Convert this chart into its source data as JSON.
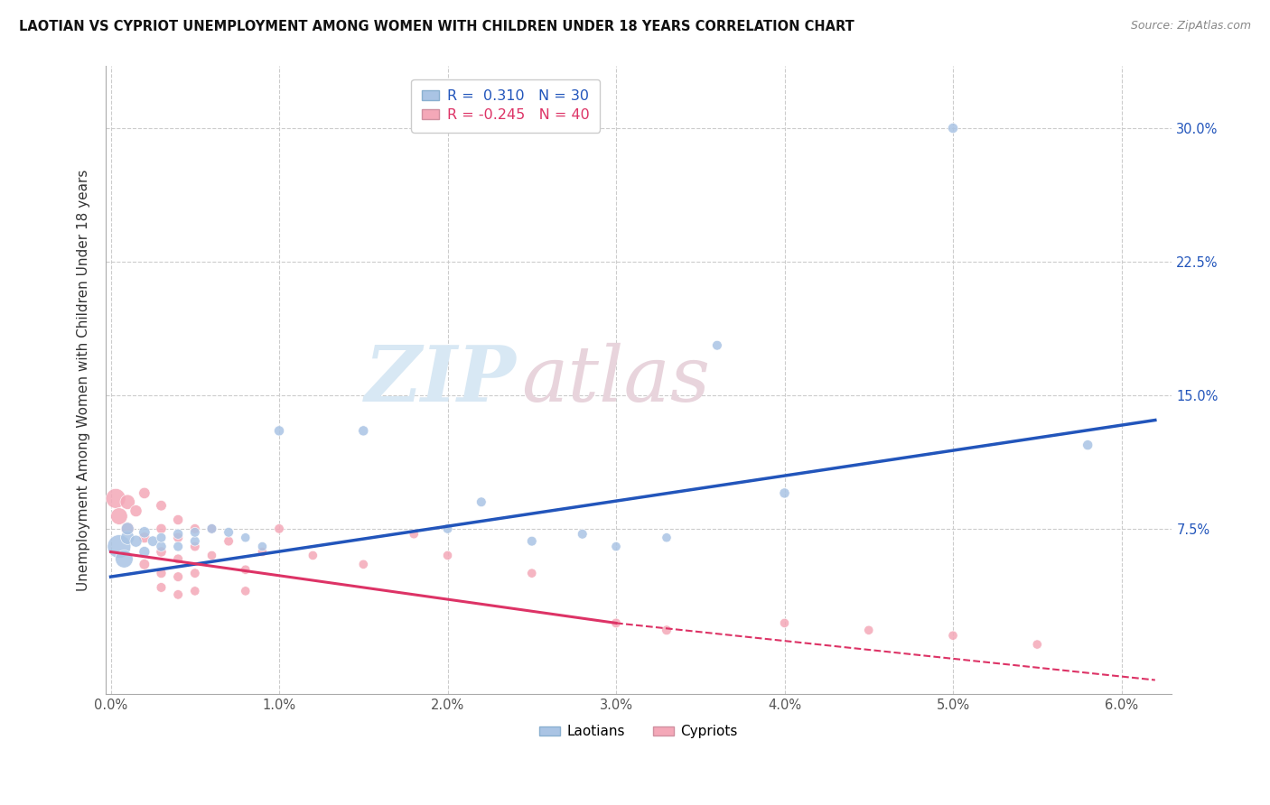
{
  "title": "LAOTIAN VS CYPRIOT UNEMPLOYMENT AMONG WOMEN WITH CHILDREN UNDER 18 YEARS CORRELATION CHART",
  "source": "Source: ZipAtlas.com",
  "ylabel": "Unemployment Among Women with Children Under 18 years",
  "xlim": [
    -0.0003,
    0.063
  ],
  "ylim": [
    -0.018,
    0.335
  ],
  "xticks": [
    0.0,
    0.01,
    0.02,
    0.03,
    0.04,
    0.05,
    0.06
  ],
  "xticklabels": [
    "0.0%",
    "1.0%",
    "2.0%",
    "3.0%",
    "4.0%",
    "5.0%",
    "6.0%"
  ],
  "yticks": [
    0.0,
    0.075,
    0.15,
    0.225,
    0.3
  ],
  "yticklabels": [
    "",
    "7.5%",
    "15.0%",
    "22.5%",
    "30.0%"
  ],
  "grid_color": "#cccccc",
  "background_color": "#ffffff",
  "watermark_zip": "ZIP",
  "watermark_atlas": "atlas",
  "laotian_color": "#aac4e4",
  "cypriot_color": "#f4a8b8",
  "laotian_line_color": "#2255bb",
  "cypriot_line_color": "#dd3366",
  "cypriot_line_color_dash": "#dd3366",
  "legend_r_laotian": "0.310",
  "legend_n_laotian": "30",
  "legend_r_cypriot": "-0.245",
  "legend_n_cypriot": "40",
  "laotian_trend": [
    0.0,
    0.062,
    0.048,
    0.136
  ],
  "cypriot_trend_solid": [
    0.0,
    0.03,
    0.062,
    0.022
  ],
  "cypriot_trend_dash": [
    0.03,
    0.022,
    0.062,
    -0.01
  ],
  "laotian_points": [
    [
      0.0005,
      0.065,
      350
    ],
    [
      0.0008,
      0.058,
      200
    ],
    [
      0.001,
      0.07,
      120
    ],
    [
      0.001,
      0.075,
      100
    ],
    [
      0.0015,
      0.068,
      90
    ],
    [
      0.002,
      0.073,
      80
    ],
    [
      0.002,
      0.062,
      75
    ],
    [
      0.0025,
      0.068,
      70
    ],
    [
      0.003,
      0.065,
      65
    ],
    [
      0.003,
      0.07,
      60
    ],
    [
      0.004,
      0.072,
      65
    ],
    [
      0.004,
      0.065,
      60
    ],
    [
      0.005,
      0.068,
      60
    ],
    [
      0.005,
      0.073,
      60
    ],
    [
      0.006,
      0.075,
      60
    ],
    [
      0.007,
      0.073,
      60
    ],
    [
      0.008,
      0.07,
      55
    ],
    [
      0.009,
      0.065,
      55
    ],
    [
      0.01,
      0.13,
      65
    ],
    [
      0.015,
      0.13,
      65
    ],
    [
      0.02,
      0.075,
      60
    ],
    [
      0.022,
      0.09,
      60
    ],
    [
      0.025,
      0.068,
      60
    ],
    [
      0.028,
      0.072,
      60
    ],
    [
      0.03,
      0.065,
      55
    ],
    [
      0.033,
      0.07,
      55
    ],
    [
      0.036,
      0.178,
      60
    ],
    [
      0.04,
      0.095,
      65
    ],
    [
      0.05,
      0.3,
      65
    ],
    [
      0.058,
      0.122,
      65
    ]
  ],
  "cypriot_points": [
    [
      0.0003,
      0.092,
      250
    ],
    [
      0.0005,
      0.082,
      180
    ],
    [
      0.001,
      0.09,
      140
    ],
    [
      0.001,
      0.075,
      110
    ],
    [
      0.0015,
      0.085,
      90
    ],
    [
      0.002,
      0.095,
      80
    ],
    [
      0.002,
      0.07,
      75
    ],
    [
      0.002,
      0.055,
      70
    ],
    [
      0.003,
      0.088,
      70
    ],
    [
      0.003,
      0.075,
      65
    ],
    [
      0.003,
      0.062,
      65
    ],
    [
      0.003,
      0.05,
      62
    ],
    [
      0.003,
      0.042,
      60
    ],
    [
      0.004,
      0.08,
      65
    ],
    [
      0.004,
      0.07,
      62
    ],
    [
      0.004,
      0.058,
      60
    ],
    [
      0.004,
      0.048,
      60
    ],
    [
      0.004,
      0.038,
      58
    ],
    [
      0.005,
      0.075,
      60
    ],
    [
      0.005,
      0.065,
      58
    ],
    [
      0.005,
      0.05,
      58
    ],
    [
      0.005,
      0.04,
      55
    ],
    [
      0.006,
      0.075,
      58
    ],
    [
      0.006,
      0.06,
      55
    ],
    [
      0.007,
      0.068,
      58
    ],
    [
      0.008,
      0.052,
      55
    ],
    [
      0.008,
      0.04,
      55
    ],
    [
      0.009,
      0.062,
      55
    ],
    [
      0.01,
      0.075,
      58
    ],
    [
      0.012,
      0.06,
      55
    ],
    [
      0.015,
      0.055,
      55
    ],
    [
      0.018,
      0.072,
      55
    ],
    [
      0.02,
      0.06,
      55
    ],
    [
      0.025,
      0.05,
      55
    ],
    [
      0.03,
      0.022,
      58
    ],
    [
      0.033,
      0.018,
      60
    ],
    [
      0.04,
      0.022,
      55
    ],
    [
      0.045,
      0.018,
      55
    ],
    [
      0.05,
      0.015,
      55
    ],
    [
      0.055,
      0.01,
      55
    ]
  ]
}
